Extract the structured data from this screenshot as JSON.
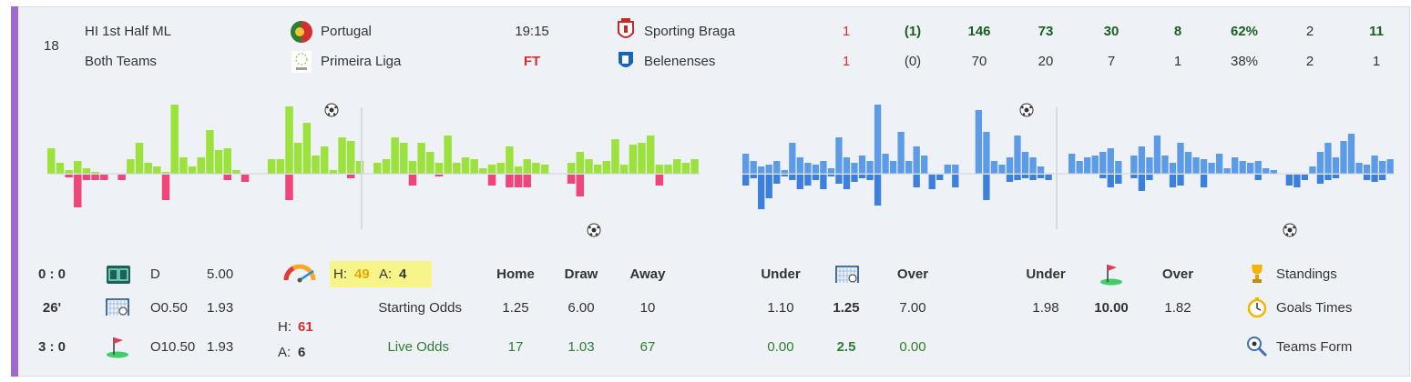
{
  "match": {
    "row_number": "18",
    "market": "HI 1st Half ML",
    "submarket": "Both Teams",
    "country": "Portugal",
    "league": "Primeira Liga",
    "time": "19:15",
    "status": "FT",
    "home_team": "Sporting Braga",
    "away_team": "Belenenses",
    "home_stats": [
      "1",
      "(1)",
      "146",
      "73",
      "30",
      "8",
      "62%",
      "2",
      "11"
    ],
    "away_stats": [
      "1",
      "(0)",
      "70",
      "20",
      "7",
      "1",
      "38%",
      "2",
      "1"
    ]
  },
  "left_panel": {
    "score_ht": "0 : 0",
    "minute": "26'",
    "score_ft": "3 : 0",
    "rows": [
      {
        "label": "D",
        "value": "5.00"
      },
      {
        "label": "O0.50",
        "value": "1.93"
      },
      {
        "label": "O10.50",
        "value": "1.93"
      }
    ]
  },
  "pressure": {
    "h_label": "H:",
    "h_value": "49",
    "a_label": "A:",
    "a_value": "4",
    "h2_label": "H:",
    "h2_value": "61",
    "a2_label": "A:",
    "a2_value": "6"
  },
  "odds": {
    "headers": [
      "Home",
      "Draw",
      "Away"
    ],
    "starting_label": "Starting Odds",
    "starting": [
      "1.25",
      "6.00",
      "10"
    ],
    "live_label": "Live Odds",
    "live": [
      "17",
      "1.03",
      "67"
    ]
  },
  "goals_ou": {
    "under_label": "Under",
    "over_label": "Over",
    "starting": [
      "1.10",
      "1.25",
      "7.00"
    ],
    "live": [
      "0.00",
      "2.5",
      "0.00"
    ]
  },
  "corners_ou": {
    "under_label": "Under",
    "over_label": "Over",
    "starting": [
      "1.98",
      "10.00",
      "1.82"
    ]
  },
  "links": {
    "standings": "Standings",
    "goals_times": "Goals Times",
    "teams_form": "Teams Form"
  },
  "colors": {
    "accent": "#a168cf",
    "home_bar": "#9be23c",
    "away_bar": "#f0457a",
    "blue_bar": "#5b9be8",
    "blue_bar_dark": "#3c7fdc"
  },
  "momentum_green": {
    "up": [
      28,
      12,
      4,
      14,
      6,
      2,
      0,
      0,
      0,
      16,
      34,
      12,
      8,
      2,
      76,
      18,
      8,
      18,
      48,
      26,
      28,
      4,
      0,
      0,
      0,
      16,
      16,
      74,
      34,
      56,
      20,
      30,
      4,
      40,
      36,
      14,
      0,
      12,
      16,
      40,
      34,
      14,
      34,
      24,
      12,
      42,
      12,
      18,
      16,
      6,
      10,
      12,
      30,
      8,
      16,
      12,
      10,
      0,
      0,
      12,
      24,
      16,
      10,
      14,
      38,
      10,
      32,
      34,
      42,
      10,
      10,
      16,
      12,
      16
    ],
    "down": [
      0,
      0,
      3,
      36,
      6,
      6,
      6,
      0,
      6,
      0,
      0,
      0,
      0,
      28,
      0,
      0,
      0,
      0,
      0,
      0,
      6,
      0,
      8,
      0,
      0,
      0,
      0,
      28,
      0,
      0,
      0,
      0,
      0,
      0,
      4,
      0,
      0,
      0,
      0,
      0,
      0,
      12,
      0,
      0,
      2,
      0,
      0,
      0,
      0,
      0,
      12,
      0,
      14,
      14,
      14,
      0,
      0,
      0,
      0,
      10,
      24,
      0,
      0,
      0,
      0,
      0,
      0,
      0,
      0,
      12,
      0,
      0,
      0,
      0
    ],
    "goals_up": [
      1
    ],
    "goals_down": [
      1
    ]
  },
  "momentum_blue": {
    "up": [
      22,
      14,
      8,
      10,
      14,
      4,
      34,
      18,
      12,
      10,
      14,
      6,
      40,
      18,
      12,
      20,
      14,
      76,
      22,
      14,
      46,
      14,
      30,
      20,
      0,
      0,
      10,
      10,
      0,
      0,
      70,
      46,
      14,
      10,
      18,
      42,
      24,
      18,
      8,
      0,
      0,
      0,
      22,
      14,
      18,
      20,
      24,
      28,
      14,
      0,
      20,
      30,
      18,
      42,
      20,
      12,
      34,
      24,
      18,
      16,
      12,
      22,
      6,
      18,
      14,
      12,
      14,
      6,
      4,
      0,
      0,
      0,
      0,
      8,
      24,
      34,
      18,
      36,
      44,
      12,
      10,
      20,
      14,
      16
    ],
    "down": [
      12,
      4,
      38,
      26,
      10,
      2,
      6,
      16,
      12,
      6,
      16,
      2,
      10,
      16,
      8,
      4,
      6,
      34,
      0,
      0,
      0,
      0,
      14,
      0,
      16,
      6,
      0,
      14,
      0,
      0,
      0,
      28,
      0,
      0,
      8,
      6,
      4,
      6,
      4,
      6,
      0,
      0,
      0,
      0,
      0,
      0,
      4,
      14,
      10,
      0,
      4,
      18,
      6,
      0,
      0,
      14,
      12,
      0,
      0,
      14,
      0,
      0,
      0,
      0,
      0,
      0,
      6,
      0,
      0,
      0,
      12,
      14,
      6,
      0,
      10,
      6,
      4,
      0,
      0,
      0,
      6,
      8,
      6,
      0
    ]
  }
}
